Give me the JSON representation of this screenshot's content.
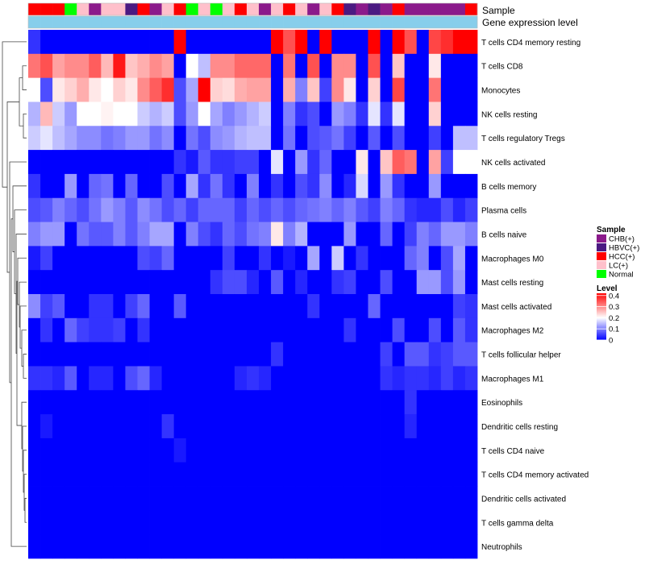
{
  "chart_data": {
    "type": "heatmap",
    "title": "",
    "annotation_rows": [
      {
        "label": "Sample",
        "type": "categorical"
      },
      {
        "label": "Gene expression level",
        "type": "continuous"
      }
    ],
    "rows": [
      "T cells CD4 memory resting",
      "T cells CD8",
      "Monocytes",
      "NK cells resting",
      "T cells regulatory  Tregs",
      "NK cells activated",
      "B cells memory",
      "Plasma cells",
      "B cells naive",
      "Macrophages M0",
      "Mast cells resting",
      "Mast cells activated",
      "Macrophages M2",
      "T cells follicular helper",
      "Macrophages M1",
      "Eosinophils",
      "Dendritic cells resting",
      "T cells CD4 naive",
      "T cells CD4 memory activated",
      "Dendritic cells activated",
      "T cells gamma delta",
      "Neutrophils"
    ],
    "sample_groups": [
      "HCC(+)",
      "HCC(+)",
      "HCC(+)",
      "Normal",
      "LC(+)",
      "CHB(+)",
      "LC(+)",
      "LC(+)",
      "HBVC(+)",
      "HCC(+)",
      "CHB(+)",
      "LC(+)",
      "HCC(+)",
      "Normal",
      "LC(+)",
      "Normal",
      "LC(+)",
      "HCC(+)",
      "LC(+)",
      "CHB(+)",
      "LC(+)",
      "HCC(+)",
      "LC(+)",
      "CHB(+)",
      "LC(+)",
      "HCC(+)",
      "HBVC(+)",
      "CHB(+)",
      "HBVC(+)",
      "CHB(+)",
      "HCC(+)",
      "CHB(+)",
      "CHB(+)",
      "CHB(+)",
      "CHB(+)",
      "CHB(+)",
      "HCC(+)"
    ],
    "expression_level": [
      0.2,
      0.2,
      0.2,
      0.2,
      0.2,
      0.2,
      0.2,
      0.2,
      0.2,
      0.2,
      0.2,
      0.2,
      0.2,
      0.2,
      0.2,
      0.2,
      0.2,
      0.2,
      0.2,
      0.2,
      0.2,
      0.2,
      0.2,
      0.2,
      0.2,
      0.2,
      0.2,
      0.2,
      0.2,
      0.2,
      0.2,
      0.2,
      0.2,
      0.2,
      0.2,
      0.2,
      0.2
    ],
    "values": [
      [
        0.04,
        0.0,
        0.0,
        0.0,
        0.0,
        0.0,
        0.0,
        0.0,
        0.0,
        0.0,
        0.0,
        0.0,
        0.42,
        0.0,
        0.0,
        0.0,
        0.0,
        0.0,
        0.0,
        0.0,
        0.42,
        0.35,
        0.42,
        0.0,
        0.42,
        0.0,
        0.0,
        0.0,
        0.42,
        0.0,
        0.42,
        0.35,
        0.0,
        0.36,
        0.38,
        0.42,
        0.42
      ],
      [
        0.32,
        0.35,
        0.28,
        0.3,
        0.3,
        0.34,
        0.26,
        0.4,
        0.25,
        0.27,
        0.3,
        0.28,
        0.0,
        0.2,
        0.15,
        0.3,
        0.3,
        0.33,
        0.33,
        0.33,
        0.0,
        0.32,
        0.0,
        0.35,
        0.0,
        0.3,
        0.3,
        0.0,
        0.35,
        0.0,
        0.25,
        0.0,
        0.0,
        0.22,
        0.0,
        0.0,
        0.0
      ],
      [
        0.2,
        0.06,
        0.22,
        0.24,
        0.27,
        0.22,
        0.2,
        0.24,
        0.22,
        0.3,
        0.34,
        0.38,
        0.06,
        0.13,
        0.42,
        0.24,
        0.23,
        0.27,
        0.28,
        0.28,
        0.0,
        0.27,
        0.1,
        0.25,
        0.05,
        0.3,
        0.22,
        0.0,
        0.24,
        0.0,
        0.36,
        0.0,
        0.0,
        0.32,
        0.0,
        0.0,
        0.0
      ],
      [
        0.14,
        0.26,
        0.16,
        0.12,
        0.2,
        0.2,
        0.21,
        0.2,
        0.2,
        0.16,
        0.14,
        0.16,
        0.06,
        0.12,
        0.2,
        0.13,
        0.1,
        0.12,
        0.14,
        0.16,
        0.0,
        0.1,
        0.04,
        0.06,
        0.0,
        0.12,
        0.1,
        0.04,
        0.18,
        0.04,
        0.18,
        0.0,
        0.0,
        0.24,
        0.0,
        0.0,
        0.0
      ],
      [
        0.16,
        0.18,
        0.15,
        0.13,
        0.11,
        0.11,
        0.09,
        0.1,
        0.12,
        0.12,
        0.09,
        0.11,
        0.0,
        0.09,
        0.06,
        0.11,
        0.12,
        0.14,
        0.15,
        0.15,
        0.0,
        0.09,
        0.0,
        0.06,
        0.07,
        0.09,
        0.05,
        0.0,
        0.07,
        0.0,
        0.06,
        0.0,
        0.0,
        0.05,
        0.0,
        0.15,
        0.15
      ],
      [
        0.0,
        0.0,
        0.0,
        0.0,
        0.0,
        0.0,
        0.0,
        0.0,
        0.0,
        0.0,
        0.0,
        0.0,
        0.04,
        0.02,
        0.07,
        0.04,
        0.04,
        0.05,
        0.05,
        0.0,
        0.18,
        0.0,
        0.12,
        0.04,
        0.08,
        0.0,
        0.0,
        0.22,
        0.0,
        0.25,
        0.34,
        0.32,
        0.0,
        0.28,
        0.05,
        0.2,
        0.2
      ],
      [
        0.04,
        0.0,
        0.0,
        0.12,
        0.0,
        0.08,
        0.09,
        0.0,
        0.08,
        0.0,
        0.0,
        0.06,
        0.0,
        0.13,
        0.04,
        0.09,
        0.04,
        0.0,
        0.1,
        0.0,
        0.04,
        0.0,
        0.06,
        0.04,
        0.11,
        0.0,
        0.03,
        0.17,
        0.0,
        0.12,
        0.04,
        0.0,
        0.0,
        0.12,
        0.0,
        0.0,
        0.0
      ],
      [
        0.06,
        0.07,
        0.1,
        0.08,
        0.06,
        0.09,
        0.12,
        0.1,
        0.07,
        0.11,
        0.09,
        0.06,
        0.08,
        0.05,
        0.08,
        0.08,
        0.08,
        0.05,
        0.08,
        0.06,
        0.08,
        0.06,
        0.08,
        0.09,
        0.1,
        0.08,
        0.1,
        0.07,
        0.05,
        0.1,
        0.08,
        0.04,
        0.03,
        0.03,
        0.06,
        0.03,
        0.05
      ],
      [
        0.1,
        0.12,
        0.12,
        0.0,
        0.09,
        0.07,
        0.07,
        0.1,
        0.07,
        0.1,
        0.13,
        0.13,
        0.0,
        0.1,
        0.06,
        0.04,
        0.08,
        0.06,
        0.09,
        0.1,
        0.22,
        0.1,
        0.14,
        0.0,
        0.0,
        0.0,
        0.12,
        0.0,
        0.0,
        0.08,
        0.0,
        0.05,
        0.1,
        0.08,
        0.12,
        0.12,
        0.1
      ],
      [
        0.02,
        0.05,
        0.0,
        0.0,
        0.0,
        0.0,
        0.0,
        0.0,
        0.0,
        0.06,
        0.05,
        0.08,
        0.0,
        0.0,
        0.0,
        0.0,
        0.05,
        0.0,
        0.0,
        0.04,
        0.0,
        0.02,
        0.0,
        0.13,
        0.0,
        0.16,
        0.0,
        0.04,
        0.0,
        0.0,
        0.0,
        0.08,
        0.1,
        0.0,
        0.06,
        0.13,
        0.0
      ],
      [
        0.0,
        0.0,
        0.0,
        0.0,
        0.0,
        0.0,
        0.0,
        0.0,
        0.0,
        0.0,
        0.0,
        0.0,
        0.0,
        0.0,
        0.0,
        0.04,
        0.06,
        0.06,
        0.03,
        0.0,
        0.07,
        0.0,
        0.03,
        0.0,
        0.0,
        0.04,
        0.05,
        0.0,
        0.0,
        0.06,
        0.0,
        0.0,
        0.12,
        0.12,
        0.06,
        0.12,
        0.0
      ],
      [
        0.11,
        0.05,
        0.07,
        0.0,
        0.0,
        0.04,
        0.04,
        0.0,
        0.05,
        0.08,
        0.0,
        0.0,
        0.07,
        0.0,
        0.0,
        0.0,
        0.0,
        0.0,
        0.0,
        0.0,
        0.0,
        0.0,
        0.0,
        0.04,
        0.0,
        0.0,
        0.0,
        0.0,
        0.08,
        0.0,
        0.0,
        0.0,
        0.0,
        0.0,
        0.0,
        0.05,
        0.04
      ],
      [
        0.0,
        0.04,
        0.0,
        0.08,
        0.05,
        0.04,
        0.04,
        0.05,
        0.0,
        0.04,
        0.0,
        0.0,
        0.0,
        0.0,
        0.0,
        0.0,
        0.0,
        0.0,
        0.0,
        0.0,
        0.0,
        0.0,
        0.0,
        0.0,
        0.0,
        0.0,
        0.04,
        0.0,
        0.0,
        0.0,
        0.06,
        0.0,
        0.0,
        0.06,
        0.0,
        0.07,
        0.04
      ],
      [
        0.0,
        0.0,
        0.0,
        0.0,
        0.0,
        0.0,
        0.0,
        0.0,
        0.0,
        0.0,
        0.0,
        0.0,
        0.0,
        0.0,
        0.0,
        0.0,
        0.0,
        0.0,
        0.0,
        0.0,
        0.04,
        0.0,
        0.0,
        0.0,
        0.0,
        0.0,
        0.0,
        0.0,
        0.0,
        0.05,
        0.0,
        0.07,
        0.07,
        0.04,
        0.05,
        0.07,
        0.07
      ],
      [
        0.04,
        0.04,
        0.03,
        0.07,
        0.0,
        0.03,
        0.03,
        0.0,
        0.06,
        0.08,
        0.03,
        0.0,
        0.0,
        0.0,
        0.0,
        0.0,
        0.0,
        0.03,
        0.04,
        0.03,
        0.0,
        0.0,
        0.0,
        0.0,
        0.0,
        0.0,
        0.0,
        0.0,
        0.0,
        0.04,
        0.03,
        0.04,
        0.04,
        0.03,
        0.05,
        0.03,
        0.04
      ],
      [
        0.0,
        0.0,
        0.0,
        0.0,
        0.0,
        0.0,
        0.0,
        0.0,
        0.0,
        0.0,
        0.0,
        0.0,
        0.0,
        0.0,
        0.0,
        0.0,
        0.0,
        0.0,
        0.0,
        0.0,
        0.0,
        0.0,
        0.0,
        0.0,
        0.0,
        0.0,
        0.0,
        0.0,
        0.0,
        0.0,
        0.0,
        0.04,
        0.0,
        0.0,
        0.0,
        0.0,
        0.0
      ],
      [
        0.0,
        0.02,
        0.0,
        0.0,
        0.0,
        0.0,
        0.0,
        0.0,
        0.0,
        0.0,
        0.0,
        0.04,
        0.0,
        0.0,
        0.0,
        0.0,
        0.0,
        0.0,
        0.0,
        0.0,
        0.0,
        0.0,
        0.0,
        0.0,
        0.0,
        0.0,
        0.0,
        0.0,
        0.0,
        0.0,
        0.0,
        0.03,
        0.0,
        0.0,
        0.0,
        0.0,
        0.0
      ],
      [
        0.0,
        0.0,
        0.0,
        0.0,
        0.0,
        0.0,
        0.0,
        0.0,
        0.0,
        0.0,
        0.0,
        0.0,
        0.02,
        0.0,
        0.0,
        0.0,
        0.0,
        0.0,
        0.0,
        0.0,
        0.0,
        0.0,
        0.0,
        0.0,
        0.0,
        0.0,
        0.0,
        0.0,
        0.0,
        0.0,
        0.0,
        0.0,
        0.0,
        0.0,
        0.0,
        0.0,
        0.0
      ],
      [
        0.0,
        0.0,
        0.0,
        0.0,
        0.0,
        0.0,
        0.0,
        0.0,
        0.0,
        0.0,
        0.0,
        0.0,
        0.0,
        0.0,
        0.0,
        0.0,
        0.0,
        0.0,
        0.0,
        0.0,
        0.0,
        0.0,
        0.0,
        0.0,
        0.0,
        0.0,
        0.0,
        0.0,
        0.0,
        0.0,
        0.0,
        0.0,
        0.0,
        0.0,
        0.0,
        0.0,
        0.0
      ],
      [
        0.0,
        0.0,
        0.0,
        0.0,
        0.0,
        0.0,
        0.0,
        0.0,
        0.0,
        0.0,
        0.0,
        0.0,
        0.0,
        0.0,
        0.0,
        0.0,
        0.0,
        0.0,
        0.0,
        0.0,
        0.0,
        0.0,
        0.0,
        0.0,
        0.0,
        0.0,
        0.0,
        0.0,
        0.0,
        0.0,
        0.0,
        0.0,
        0.0,
        0.0,
        0.0,
        0.0,
        0.0
      ],
      [
        0.0,
        0.0,
        0.0,
        0.0,
        0.0,
        0.0,
        0.0,
        0.0,
        0.0,
        0.0,
        0.0,
        0.0,
        0.0,
        0.0,
        0.0,
        0.0,
        0.0,
        0.0,
        0.0,
        0.0,
        0.0,
        0.0,
        0.0,
        0.0,
        0.0,
        0.0,
        0.0,
        0.0,
        0.0,
        0.0,
        0.0,
        0.0,
        0.0,
        0.0,
        0.0,
        0.0,
        0.0
      ],
      [
        0.0,
        0.0,
        0.0,
        0.0,
        0.0,
        0.0,
        0.0,
        0.0,
        0.0,
        0.0,
        0.0,
        0.0,
        0.0,
        0.0,
        0.0,
        0.0,
        0.0,
        0.0,
        0.0,
        0.0,
        0.0,
        0.0,
        0.0,
        0.0,
        0.0,
        0.0,
        0.0,
        0.0,
        0.0,
        0.0,
        0.0,
        0.0,
        0.0,
        0.0,
        0.0,
        0.0,
        0.0
      ]
    ],
    "color_scale": {
      "stops": [
        {
          "value": 0.0,
          "color": "#0000ff"
        },
        {
          "value": 0.2,
          "color": "#ffffff"
        },
        {
          "value": 0.42,
          "color": "#ff0000"
        }
      ],
      "range": [
        0,
        0.42
      ]
    },
    "legends": {
      "sample": {
        "title": "Sample",
        "items": [
          {
            "label": "CHB(+)",
            "color": "#8b1a8b"
          },
          {
            "label": "HBVC(+)",
            "color": "#4b1a82"
          },
          {
            "label": "HCC(+)",
            "color": "#ff0000"
          },
          {
            "label": "LC(+)",
            "color": "#ffc0cb"
          },
          {
            "label": "Normal",
            "color": "#00ff00"
          }
        ]
      },
      "level": {
        "title": "Level",
        "ticks": [
          {
            "value": 0.4,
            "label": "0.4"
          },
          {
            "value": 0.3,
            "label": "0.3"
          },
          {
            "value": 0.2,
            "label": "0.2"
          },
          {
            "value": 0.1,
            "label": "0.1"
          },
          {
            "value": 0,
            "label": "0"
          }
        ]
      }
    },
    "expression_bar_color": "#87ceeb",
    "border_color": "#bbbbbb"
  }
}
